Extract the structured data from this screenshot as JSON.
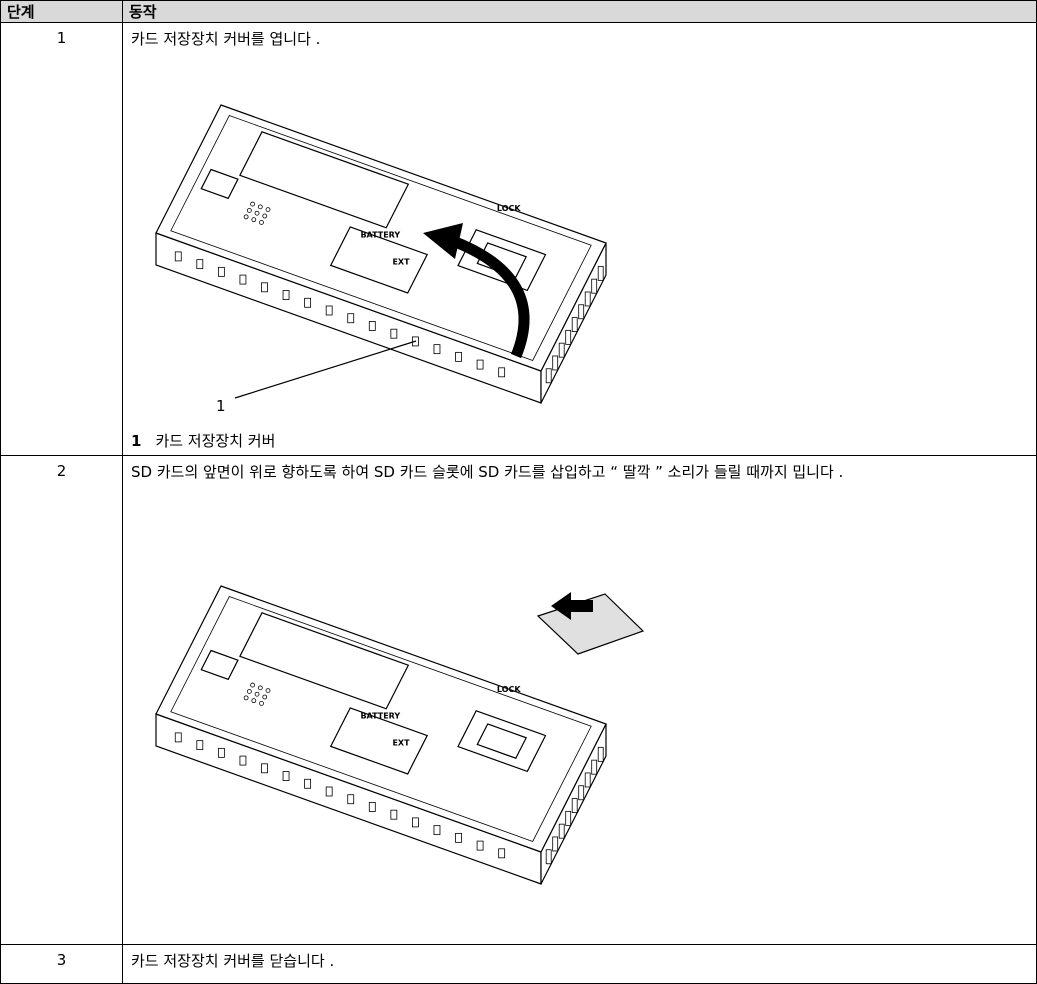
{
  "table": {
    "header": [
      "단계",
      "동작"
    ],
    "rows": [
      {
        "step": "1",
        "action": "카드 저장장치 커버를 엽니다 .",
        "figure_labels": [
          "LOCK",
          "BATTERY",
          "EXT"
        ],
        "callout": "1",
        "legend": {
          "number": "1",
          "text": "카드 저장장치 커버"
        }
      },
      {
        "step": "2",
        "action": "SD 카드의 앞면이 위로 향하도록 하여 SD 카드 슬롯에 SD 카드를 삽입하고 “ 딸깍 ” 소리가 들릴 때까지 밉니다 .",
        "figure_labels": [
          "LOCK",
          "BATTERY",
          "EXT"
        ]
      },
      {
        "step": "3",
        "action": "카드 저장장치 커버를 닫습니다 ."
      }
    ]
  }
}
